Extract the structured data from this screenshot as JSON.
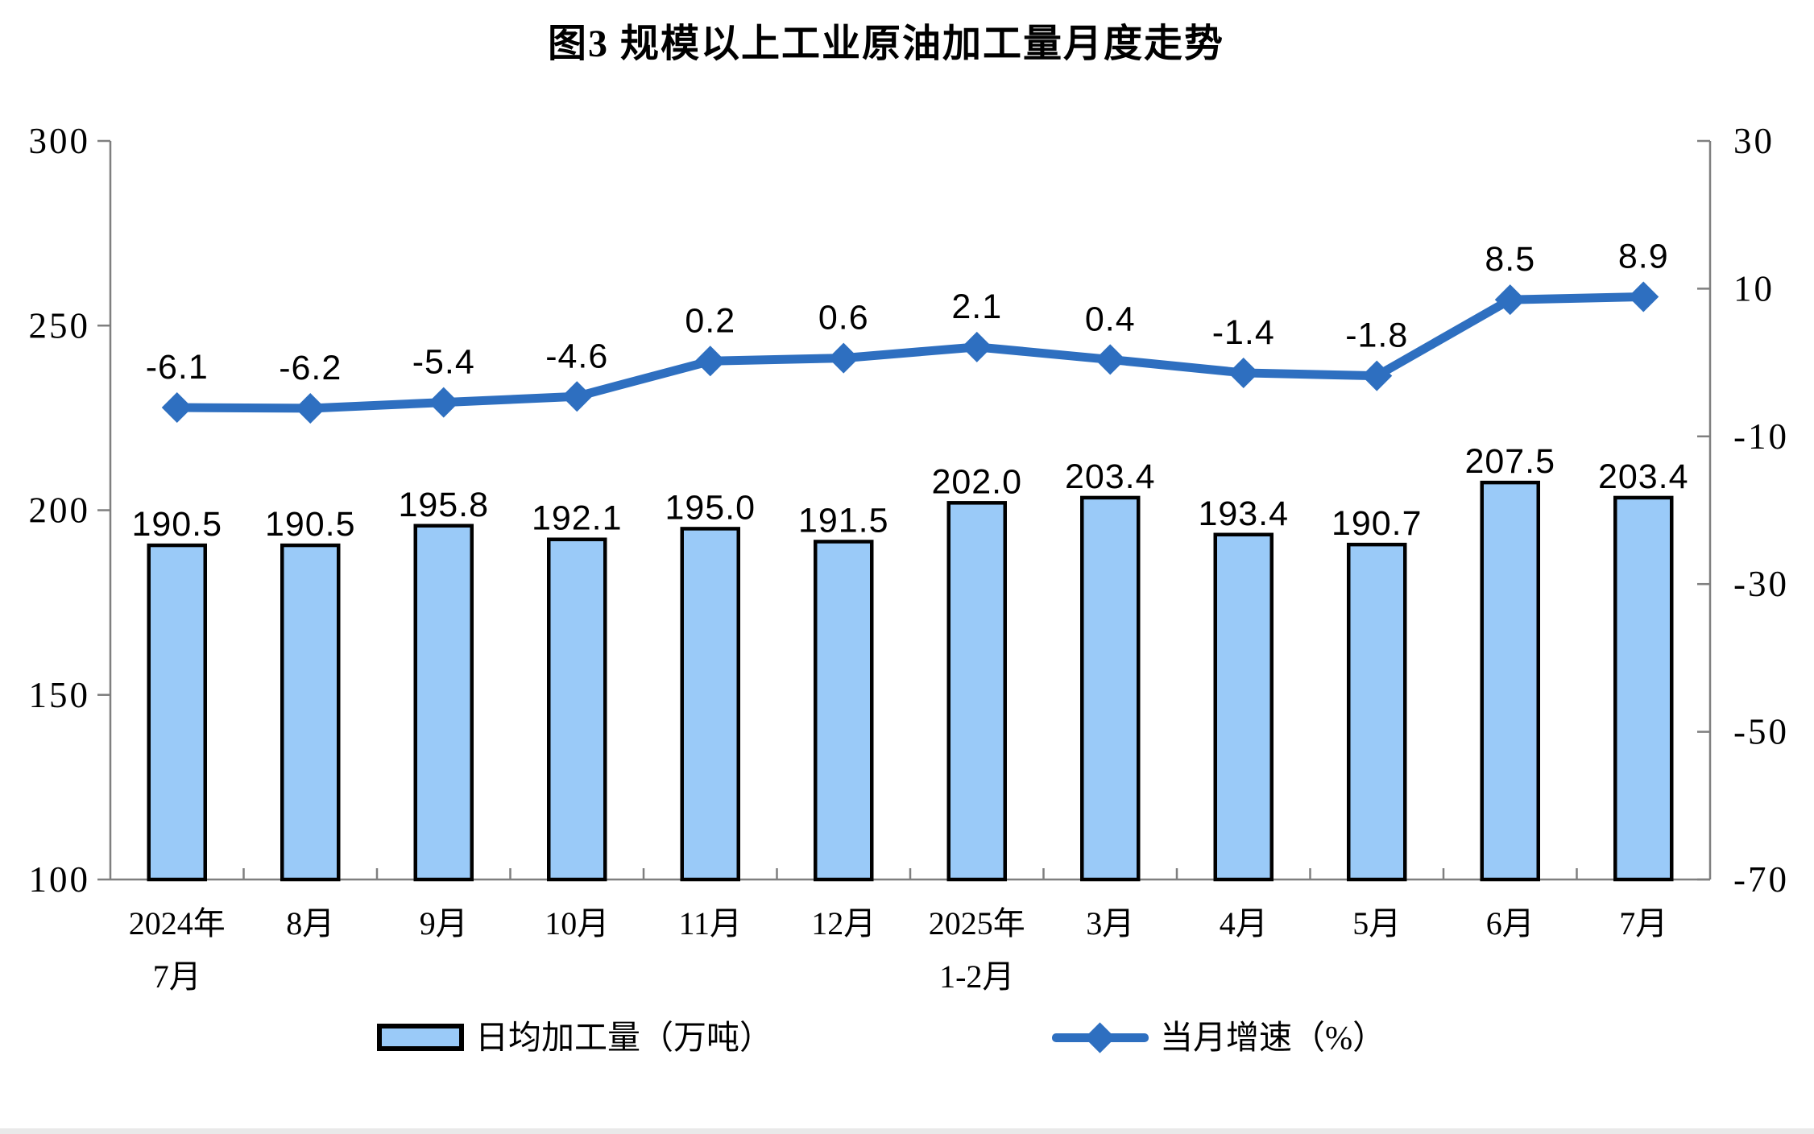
{
  "title": "图3 规模以上工业原油加工量月度走势",
  "colors": {
    "bar_fill": "#9ACAF8",
    "bar_border": "#000000",
    "line": "#2E6FC0",
    "axis": "#7F7F7F",
    "text": "#000000"
  },
  "chart_data": {
    "type": "bar",
    "subtype": "bar+line combo, dual y-axes",
    "title": "图3 规模以上工业原油加工量月度走势",
    "categories": [
      [
        "2024年",
        "7月"
      ],
      [
        "8月"
      ],
      [
        "9月"
      ],
      [
        "10月"
      ],
      [
        "11月"
      ],
      [
        "12月"
      ],
      [
        "2025年",
        "1-2月"
      ],
      [
        "3月"
      ],
      [
        "4月"
      ],
      [
        "5月"
      ],
      [
        "6月"
      ],
      [
        "7月"
      ]
    ],
    "series": [
      {
        "name": "日均加工量（万吨）",
        "type": "bar",
        "axis": "left",
        "values": [
          190.5,
          190.5,
          195.8,
          192.1,
          195.0,
          191.5,
          202.0,
          203.4,
          193.4,
          190.7,
          207.5,
          203.4
        ]
      },
      {
        "name": "当月增速（%）",
        "type": "line",
        "axis": "right",
        "values": [
          -6.1,
          -6.2,
          -5.4,
          -4.6,
          0.2,
          0.6,
          2.1,
          0.4,
          -1.4,
          -1.8,
          8.5,
          8.9
        ]
      }
    ],
    "left_axis": {
      "min": 100,
      "max": 300,
      "ticks": [
        300,
        250,
        200,
        150,
        100
      ]
    },
    "right_axis": {
      "min": -70,
      "max": 30,
      "ticks": [
        30,
        10,
        -10,
        -30,
        -50,
        -70
      ]
    },
    "grid": "off",
    "legend_position": "bottom",
    "data_labels": "on, one decimal place"
  }
}
